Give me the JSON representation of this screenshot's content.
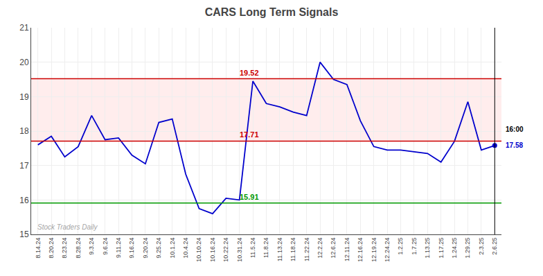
{
  "chart_data": {
    "type": "line",
    "title": "CARS Long Term Signals",
    "categories": [
      "8.14.24",
      "8.20.24",
      "8.23.24",
      "8.28.24",
      "9.3.24",
      "9.6.24",
      "9.11.24",
      "9.16.24",
      "9.20.24",
      "9.25.24",
      "10.1.24",
      "10.4.24",
      "10.10.24",
      "10.16.24",
      "10.22.24",
      "10.31.24",
      "11.5.24",
      "11.8.24",
      "11.13.24",
      "11.18.24",
      "11.22.24",
      "12.2.24",
      "12.6.24",
      "12.11.24",
      "12.16.24",
      "12.19.24",
      "12.24.24",
      "1.2.25",
      "1.7.25",
      "1.13.25",
      "1.17.25",
      "1.24.25",
      "1.29.25",
      "2.3.25",
      "2.6.25"
    ],
    "values": [
      17.6,
      17.85,
      17.25,
      17.55,
      18.45,
      17.75,
      17.8,
      17.3,
      17.05,
      18.25,
      18.35,
      16.75,
      15.75,
      15.6,
      16.05,
      16.0,
      19.45,
      18.8,
      18.7,
      18.55,
      18.45,
      20.0,
      19.5,
      19.35,
      18.3,
      17.55,
      17.45,
      17.45,
      17.4,
      17.35,
      17.1,
      17.7,
      18.85,
      17.45,
      17.58
    ],
    "color": "#0000cc",
    "marker": "circle",
    "ylim": [
      15,
      21
    ],
    "yticks": [
      15,
      16,
      17,
      18,
      19,
      20,
      21
    ],
    "grid": true,
    "band": {
      "from": 17.71,
      "to": 19.52,
      "color": "#ffcccc"
    },
    "reference_lines": [
      {
        "value": 19.52,
        "label": "19.52",
        "color": "#cc0000"
      },
      {
        "value": 17.71,
        "label": "17.71",
        "color": "#cc0000"
      },
      {
        "value": 15.91,
        "label": "15.91",
        "color": "#009900"
      }
    ],
    "annotations": [
      {
        "text": "16:00",
        "y": 18.05,
        "color": "#000000"
      },
      {
        "text": "17.58",
        "y": 17.58,
        "color": "#0000cc"
      },
      {
        "text": "Stock Traders Daily",
        "color": "#808080"
      }
    ]
  }
}
